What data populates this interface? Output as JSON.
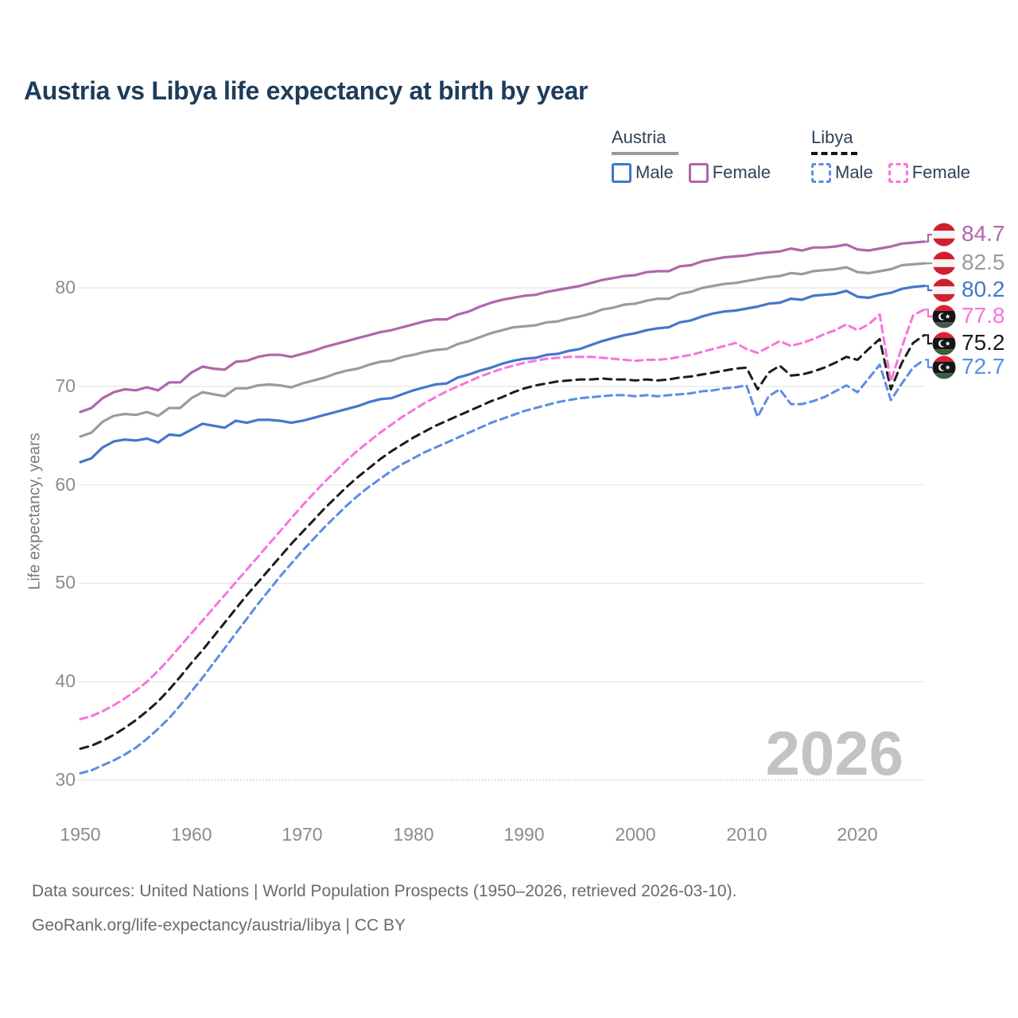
{
  "title": "Austria vs Libya life expectancy at birth by year",
  "legend": {
    "austria": {
      "label": "Austria",
      "male": "Male",
      "female": "Female"
    },
    "libya": {
      "label": "Libya",
      "male": "Male",
      "female": "Female"
    }
  },
  "y_axis": {
    "title": "Life expectancy, years",
    "ticks": [
      80,
      70,
      60,
      50,
      40,
      30
    ]
  },
  "x_axis": {
    "ticks": [
      1950,
      1960,
      1970,
      1980,
      1990,
      2000,
      2010,
      2020
    ]
  },
  "watermark": "2026",
  "footer": {
    "line1": "Data sources: United Nations | World Population Prospects (1950–2026, retrieved 2026-03-10).",
    "line2": "GeoRank.org/life-expectancy/austria/libya | CC BY"
  },
  "colors": {
    "austria_male": "#4377cc",
    "austria_female": "#b066ab",
    "austria_total": "#9b9b9b",
    "libya_male": "#5b8de4",
    "libya_female": "#f873de",
    "libya_total": "#1c1c1c",
    "title_text": "#1e3c5a",
    "axis_text": "#8c8c8c",
    "footer_text": "#6a6a6a",
    "watermark_text": "#c3c3c3",
    "grid": "#e9e9e9",
    "grid_bottom": "#c9c9c9",
    "flag_austria_red": "#d0202f",
    "flag_libya_red": "#dd2033",
    "flag_libya_green": "#3e5a41",
    "flag_libya_black": "#151515"
  },
  "icons": [
    "austria-flag-icon",
    "libya-flag-icon"
  ],
  "chart_data": {
    "type": "line",
    "x_start": 1950,
    "x_end": 2026,
    "x_step": 1,
    "xlabel": "",
    "ylabel": "Life expectancy, years",
    "ylim": [
      28,
      87
    ],
    "grid": "horizontal",
    "legend_position": "top-right",
    "series": [
      {
        "name": "Austria Total",
        "country": "austria",
        "sex": "total",
        "style": "solid",
        "color_key": "austria_total",
        "end_label": "82.5",
        "values": [
          64.9,
          65.3,
          66.4,
          67.0,
          67.2,
          67.1,
          67.4,
          67.0,
          67.8,
          67.8,
          68.8,
          69.4,
          69.2,
          69.0,
          69.8,
          69.8,
          70.1,
          70.2,
          70.1,
          69.9,
          70.3,
          70.6,
          70.9,
          71.3,
          71.6,
          71.8,
          72.2,
          72.5,
          72.6,
          73.0,
          73.2,
          73.5,
          73.7,
          73.8,
          74.3,
          74.6,
          75.0,
          75.4,
          75.7,
          76.0,
          76.1,
          76.2,
          76.5,
          76.6,
          76.9,
          77.1,
          77.4,
          77.8,
          78.0,
          78.3,
          78.4,
          78.7,
          78.9,
          78.9,
          79.4,
          79.6,
          80.0,
          80.2,
          80.4,
          80.5,
          80.7,
          80.9,
          81.1,
          81.2,
          81.5,
          81.4,
          81.7,
          81.8,
          81.9,
          82.1,
          81.6,
          81.5,
          81.7,
          81.9,
          82.3,
          82.4,
          82.5
        ]
      },
      {
        "name": "Austria Male",
        "country": "austria",
        "sex": "male",
        "style": "solid",
        "color_key": "austria_male",
        "end_label": "80.2",
        "values": [
          62.3,
          62.7,
          63.8,
          64.4,
          64.6,
          64.5,
          64.7,
          64.3,
          65.1,
          65.0,
          65.6,
          66.2,
          66.0,
          65.8,
          66.5,
          66.3,
          66.6,
          66.6,
          66.5,
          66.3,
          66.5,
          66.8,
          67.1,
          67.4,
          67.7,
          68.0,
          68.4,
          68.7,
          68.8,
          69.2,
          69.6,
          69.9,
          70.2,
          70.3,
          70.9,
          71.2,
          71.6,
          71.9,
          72.3,
          72.6,
          72.8,
          72.9,
          73.2,
          73.3,
          73.6,
          73.8,
          74.2,
          74.6,
          74.9,
          75.2,
          75.4,
          75.7,
          75.9,
          76.0,
          76.5,
          76.7,
          77.1,
          77.4,
          77.6,
          77.7,
          77.9,
          78.1,
          78.4,
          78.5,
          78.9,
          78.8,
          79.2,
          79.3,
          79.4,
          79.7,
          79.1,
          79.0,
          79.3,
          79.5,
          79.9,
          80.1,
          80.2
        ]
      },
      {
        "name": "Austria Female",
        "country": "austria",
        "sex": "female",
        "style": "solid",
        "color_key": "austria_female",
        "end_label": "84.7",
        "values": [
          67.4,
          67.8,
          68.8,
          69.4,
          69.7,
          69.6,
          69.9,
          69.6,
          70.4,
          70.4,
          71.4,
          72.0,
          71.8,
          71.7,
          72.5,
          72.6,
          73.0,
          73.2,
          73.2,
          73.0,
          73.3,
          73.6,
          74.0,
          74.3,
          74.6,
          74.9,
          75.2,
          75.5,
          75.7,
          76.0,
          76.3,
          76.6,
          76.8,
          76.8,
          77.3,
          77.6,
          78.1,
          78.5,
          78.8,
          79.0,
          79.2,
          79.3,
          79.6,
          79.8,
          80.0,
          80.2,
          80.5,
          80.8,
          81.0,
          81.2,
          81.3,
          81.6,
          81.7,
          81.7,
          82.2,
          82.3,
          82.7,
          82.9,
          83.1,
          83.2,
          83.3,
          83.5,
          83.6,
          83.7,
          84.0,
          83.8,
          84.1,
          84.1,
          84.2,
          84.4,
          83.9,
          83.8,
          84.0,
          84.2,
          84.5,
          84.6,
          84.7
        ]
      },
      {
        "name": "Libya Male",
        "country": "libya",
        "sex": "male",
        "style": "dashed",
        "color_key": "libya_male",
        "end_label": "72.7",
        "values": [
          30.7,
          31.0,
          31.5,
          32.0,
          32.6,
          33.3,
          34.2,
          35.2,
          36.3,
          37.6,
          39.0,
          40.4,
          41.9,
          43.4,
          44.9,
          46.4,
          47.9,
          49.3,
          50.7,
          52.0,
          53.3,
          54.5,
          55.7,
          56.8,
          57.9,
          58.9,
          59.8,
          60.6,
          61.4,
          62.1,
          62.7,
          63.3,
          63.8,
          64.3,
          64.8,
          65.3,
          65.8,
          66.3,
          66.7,
          67.1,
          67.5,
          67.8,
          68.1,
          68.4,
          68.6,
          68.8,
          68.9,
          69.0,
          69.1,
          69.1,
          69.0,
          69.1,
          69.0,
          69.1,
          69.2,
          69.3,
          69.5,
          69.6,
          69.8,
          69.9,
          70.1,
          66.9,
          69.0,
          69.7,
          68.2,
          68.2,
          68.5,
          68.9,
          69.5,
          70.1,
          69.4,
          70.8,
          72.2,
          68.6,
          70.3,
          71.9,
          72.7
        ]
      },
      {
        "name": "Libya Total",
        "country": "libya",
        "sex": "total",
        "style": "dashed",
        "color_key": "libya_total",
        "end_label": "75.2",
        "values": [
          33.2,
          33.5,
          34.0,
          34.6,
          35.3,
          36.1,
          37.0,
          38.0,
          39.2,
          40.5,
          41.9,
          43.2,
          44.6,
          46.0,
          47.4,
          48.8,
          50.1,
          51.4,
          52.7,
          54.0,
          55.2,
          56.4,
          57.6,
          58.7,
          59.8,
          60.8,
          61.7,
          62.6,
          63.4,
          64.1,
          64.8,
          65.4,
          66.0,
          66.5,
          67.0,
          67.5,
          68.0,
          68.5,
          68.9,
          69.4,
          69.8,
          70.1,
          70.3,
          70.5,
          70.6,
          70.7,
          70.7,
          70.8,
          70.7,
          70.7,
          70.6,
          70.7,
          70.6,
          70.7,
          70.9,
          71.0,
          71.2,
          71.4,
          71.6,
          71.8,
          71.9,
          69.7,
          71.4,
          72.1,
          71.1,
          71.2,
          71.5,
          71.9,
          72.4,
          73.0,
          72.7,
          73.8,
          74.8,
          69.7,
          72.4,
          74.4,
          75.2
        ]
      },
      {
        "name": "Libya Female",
        "country": "libya",
        "sex": "female",
        "style": "dashed",
        "color_key": "libya_female",
        "end_label": "77.8",
        "values": [
          36.2,
          36.5,
          37.0,
          37.6,
          38.3,
          39.1,
          40.0,
          41.1,
          42.3,
          43.6,
          44.9,
          46.2,
          47.5,
          48.8,
          50.1,
          51.4,
          52.7,
          54.0,
          55.3,
          56.6,
          57.9,
          59.1,
          60.3,
          61.4,
          62.5,
          63.5,
          64.4,
          65.3,
          66.1,
          66.9,
          67.6,
          68.3,
          68.9,
          69.5,
          70.0,
          70.5,
          71.0,
          71.4,
          71.8,
          72.1,
          72.4,
          72.6,
          72.8,
          72.9,
          73.0,
          73.0,
          73.0,
          72.9,
          72.8,
          72.7,
          72.6,
          72.7,
          72.7,
          72.8,
          73.0,
          73.2,
          73.5,
          73.8,
          74.1,
          74.4,
          73.8,
          73.4,
          74.0,
          74.6,
          74.1,
          74.4,
          74.8,
          75.3,
          75.7,
          76.3,
          75.7,
          76.3,
          77.3,
          70.5,
          74.0,
          77.2,
          77.8
        ]
      }
    ]
  }
}
